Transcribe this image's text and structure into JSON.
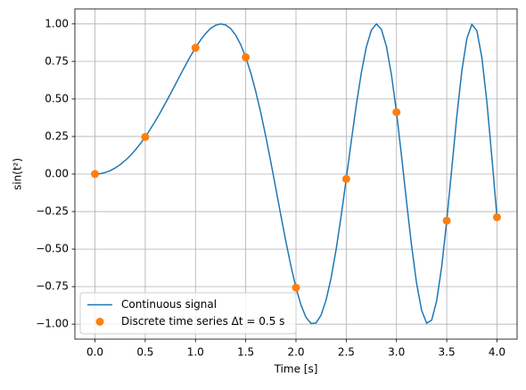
{
  "chart_data": {
    "type": "line",
    "xlabel": "Time [s]",
    "ylabel": "sin(t²)",
    "xlim": [
      -0.2,
      4.2
    ],
    "ylim": [
      -1.1,
      1.1
    ],
    "xticks": [
      {
        "value": 0,
        "label": "0.0"
      },
      0.5,
      {
        "value": 1,
        "label": "1.0"
      },
      1.5,
      {
        "value": 2,
        "label": "2.0"
      },
      2.5,
      {
        "value": 3,
        "label": "3.0"
      },
      3.5,
      {
        "value": 4,
        "label": "4.0"
      }
    ],
    "yticks": [
      {
        "value": -1,
        "label": "−1.00"
      },
      {
        "value": -0.75,
        "label": "−0.75"
      },
      {
        "value": -0.5,
        "label": "−0.50"
      },
      {
        "value": -0.25,
        "label": "−0.25"
      },
      {
        "value": 0,
        "label": "0.00"
      },
      {
        "value": 0.25,
        "label": "0.25"
      },
      {
        "value": 0.5,
        "label": "0.50"
      },
      {
        "value": 0.75,
        "label": "0.75"
      },
      {
        "value": 1,
        "label": "1.00"
      }
    ],
    "grid": true,
    "legend": "lower left",
    "series": [
      {
        "name": "Continuous signal",
        "type": "line",
        "color": "#1f77b4",
        "x": [
          0,
          0.05,
          0.1,
          0.15,
          0.2,
          0.25,
          0.3,
          0.35,
          0.4,
          0.45,
          0.5,
          0.55,
          0.6,
          0.65,
          0.7,
          0.75,
          0.8,
          0.85,
          0.9,
          0.95,
          1,
          1.05,
          1.1,
          1.15,
          1.2,
          1.25,
          1.3,
          1.35,
          1.4,
          1.45,
          1.5,
          1.55,
          1.6,
          1.65,
          1.7,
          1.75,
          1.8,
          1.85,
          1.9,
          1.95,
          2,
          2.05,
          2.1,
          2.15,
          2.2,
          2.25,
          2.3,
          2.35,
          2.4,
          2.45,
          2.5,
          2.55,
          2.6,
          2.65,
          2.7,
          2.75,
          2.8,
          2.85,
          2.9,
          2.95,
          3,
          3.05,
          3.1,
          3.15,
          3.2,
          3.25,
          3.3,
          3.35,
          3.4,
          3.45,
          3.5,
          3.55,
          3.6,
          3.65,
          3.7,
          3.75,
          3.8,
          3.85,
          3.9,
          3.95,
          4
        ],
        "values": [
          0,
          0.002,
          0.01,
          0.022,
          0.04,
          0.062,
          0.09,
          0.122,
          0.159,
          0.201,
          0.247,
          0.298,
          0.352,
          0.41,
          0.471,
          0.533,
          0.597,
          0.661,
          0.724,
          0.785,
          0.841,
          0.892,
          0.936,
          0.97,
          0.991,
          1,
          0.993,
          0.969,
          0.925,
          0.862,
          0.778,
          0.674,
          0.549,
          0.407,
          0.249,
          0.079,
          -0.098,
          -0.277,
          -0.451,
          -0.614,
          -0.757,
          -0.873,
          -0.956,
          -0.996,
          -0.992,
          -0.94,
          -0.838,
          -0.69,
          -0.5,
          -0.277,
          -0.033,
          0.218,
          0.459,
          0.674,
          0.846,
          0.958,
          1,
          0.964,
          0.85,
          0.661,
          0.412,
          0.122,
          -0.184,
          -0.477,
          -0.728,
          -0.908,
          -0.994,
          -0.974,
          -0.845,
          -0.616,
          -0.311,
          0.036,
          0.383,
          0.686,
          0.902,
          0.997,
          0.955,
          0.774,
          0.477,
          0.105,
          -0.288
        ]
      },
      {
        "name": "Discrete time series Δt = 0.5 s",
        "type": "scatter",
        "color": "#ff7f0e",
        "x": [
          0,
          0.5,
          1,
          1.5,
          2,
          2.5,
          3,
          3.5,
          4
        ],
        "values": [
          0,
          0.247,
          0.841,
          0.778,
          -0.757,
          -0.033,
          0.412,
          -0.311,
          -0.288
        ]
      }
    ]
  }
}
